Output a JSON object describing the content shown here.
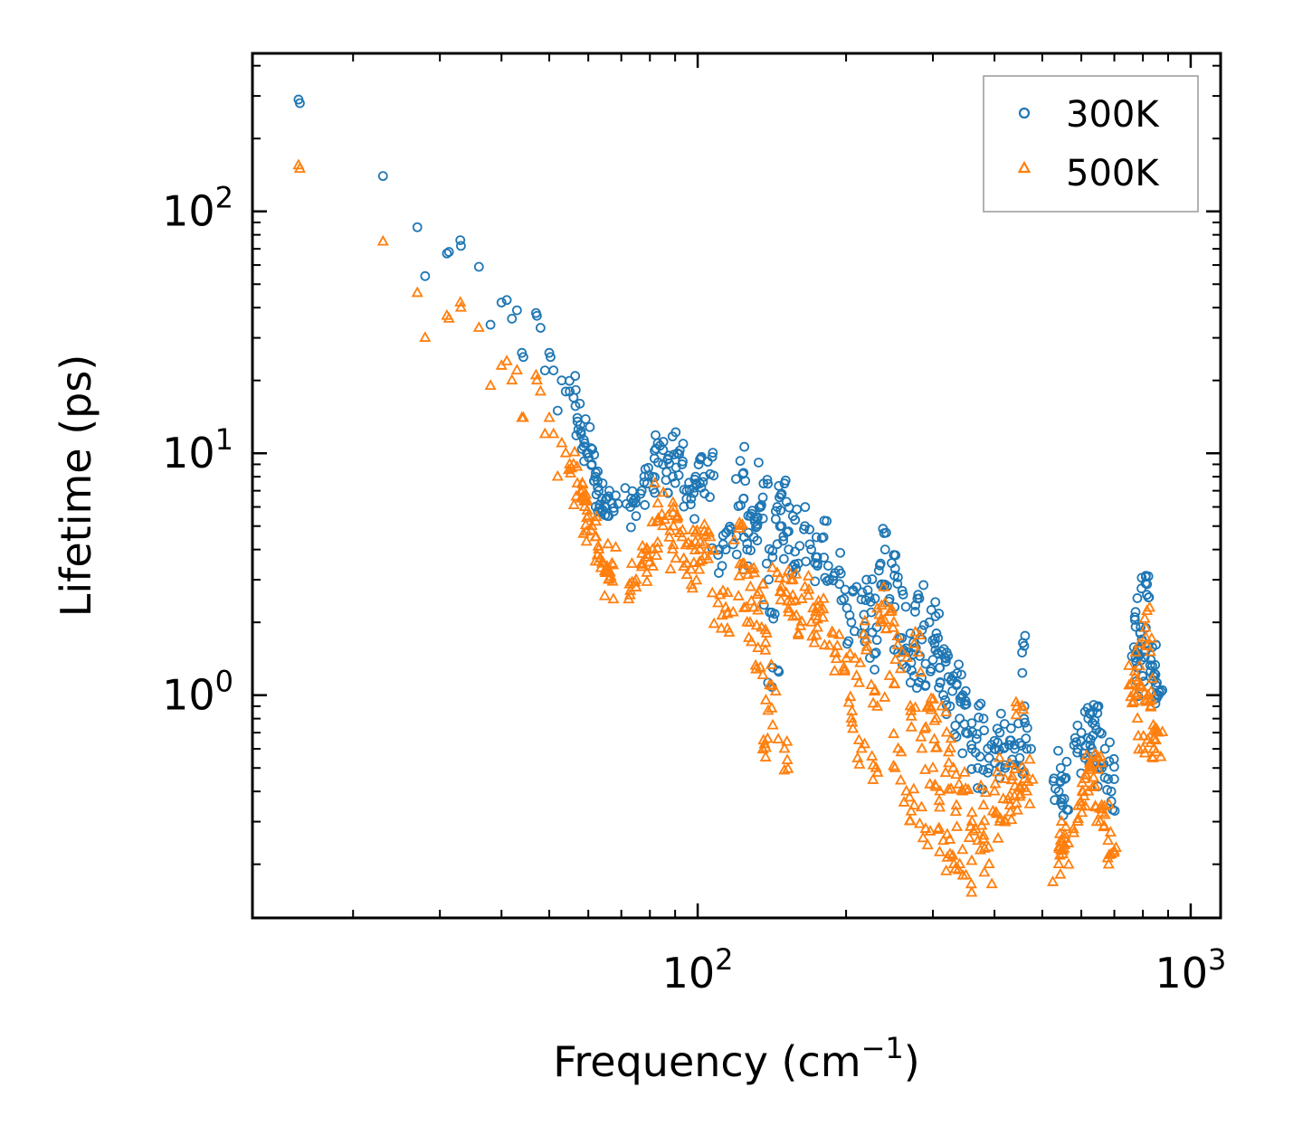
{
  "chart_data": {
    "type": "scatter",
    "xscale": "log",
    "yscale": "log",
    "xlim": [
      12.5,
      1150
    ],
    "ylim": [
      0.12,
      450
    ],
    "xlabel": "Frequency (cm",
    "xlabel_exp": "−1",
    "xlabel_close": ")",
    "ylabel": "Lifetime (ps)",
    "x_ticks": [
      {
        "base": "10",
        "exp": "2",
        "value": 100
      },
      {
        "base": "10",
        "exp": "3",
        "value": 1000
      }
    ],
    "y_ticks": [
      {
        "base": "10",
        "exp": "0",
        "value": 1
      },
      {
        "base": "10",
        "exp": "1",
        "value": 10
      },
      {
        "base": "10",
        "exp": "2",
        "value": 100
      }
    ],
    "legend_position": "top-right",
    "colors": {
      "series_300K": "#1f77b4",
      "series_500K": "#ff7f0e",
      "axis": "#000000",
      "legend_border": "#999999"
    },
    "series": [
      {
        "name": "300K",
        "marker": "circle",
        "color": "#1f77b4",
        "points": [
          [
            15.5,
            290
          ],
          [
            15.6,
            280
          ],
          [
            23,
            140
          ],
          [
            27,
            86
          ],
          [
            28,
            54
          ],
          [
            31,
            67
          ],
          [
            31.3,
            68
          ],
          [
            33,
            76
          ],
          [
            33.1,
            72
          ],
          [
            36,
            59
          ],
          [
            38,
            34
          ],
          [
            40,
            42
          ],
          [
            41,
            43
          ],
          [
            42,
            36
          ],
          [
            43,
            39
          ],
          [
            44,
            26
          ],
          [
            44.3,
            25
          ],
          [
            47,
            38
          ],
          [
            47.2,
            37
          ],
          [
            48,
            33
          ],
          [
            49,
            22
          ],
          [
            50,
            26
          ],
          [
            50.3,
            25
          ],
          [
            51,
            22
          ],
          [
            52,
            15
          ],
          [
            53,
            20
          ],
          [
            54,
            18
          ],
          [
            55,
            18
          ],
          [
            56,
            17
          ],
          [
            57,
            14
          ],
          [
            58,
            12
          ],
          [
            59,
            11
          ],
          [
            60,
            10
          ],
          [
            61,
            9
          ],
          [
            62,
            8
          ],
          [
            63,
            7
          ],
          [
            64,
            6.5
          ],
          [
            65,
            6
          ],
          [
            66,
            5.5
          ],
          [
            67,
            6.2
          ],
          [
            73,
            6
          ],
          [
            75,
            5.5
          ],
          [
            77,
            7
          ],
          [
            79,
            7.5
          ],
          [
            81,
            8
          ],
          [
            83,
            11
          ],
          [
            85,
            9
          ],
          [
            87,
            9.5
          ],
          [
            89,
            8
          ],
          [
            91,
            10
          ],
          [
            93,
            9
          ],
          [
            95,
            7
          ],
          [
            97,
            6.5
          ],
          [
            99,
            8
          ],
          [
            101,
            7.5
          ],
          [
            103,
            8
          ],
          [
            106,
            8.2
          ],
          [
            110,
            3.8
          ],
          [
            114,
            4
          ],
          [
            118,
            4.2
          ],
          [
            122,
            9.3
          ],
          [
            124,
            6.5
          ],
          [
            126,
            4
          ],
          [
            128,
            5.5
          ],
          [
            130,
            4.5
          ],
          [
            132,
            5
          ],
          [
            134,
            6
          ],
          [
            136,
            7.5
          ],
          [
            138,
            3.5
          ],
          [
            140,
            2.2
          ],
          [
            142,
            1.3
          ],
          [
            145,
            6
          ],
          [
            148,
            5
          ],
          [
            150,
            7.5
          ],
          [
            153,
            4
          ],
          [
            156,
            5.5
          ],
          [
            160,
            3.5
          ],
          [
            165,
            5
          ],
          [
            170,
            4
          ],
          [
            175,
            3.5
          ],
          [
            180,
            4.5
          ],
          [
            185,
            3
          ],
          [
            190,
            3.2
          ],
          [
            198,
            2.5
          ],
          [
            205,
            2
          ],
          [
            210,
            2.8
          ],
          [
            215,
            1.8
          ],
          [
            220,
            3
          ],
          [
            225,
            2.2
          ],
          [
            230,
            1.5
          ],
          [
            235,
            3.5
          ],
          [
            240,
            4
          ],
          [
            245,
            2.5
          ],
          [
            250,
            3.8
          ],
          [
            255,
            1.5
          ],
          [
            260,
            2.7
          ],
          [
            265,
            1.3
          ],
          [
            270,
            1.8
          ],
          [
            275,
            1.2
          ],
          [
            280,
            2.6
          ],
          [
            285,
            1.7
          ],
          [
            290,
            1.1
          ],
          [
            295,
            2
          ],
          [
            300,
            1.4
          ],
          [
            305,
            1.8
          ],
          [
            310,
            1.3
          ],
          [
            315,
            1
          ],
          [
            320,
            1.5
          ],
          [
            325,
            0.9
          ],
          [
            330,
            1.2
          ],
          [
            335,
            1.1
          ],
          [
            340,
            0.8
          ],
          [
            345,
            1
          ],
          [
            350,
            0.7
          ],
          [
            360,
            0.6
          ],
          [
            370,
            0.5
          ],
          [
            380,
            0.8
          ],
          [
            390,
            0.55
          ],
          [
            400,
            0.6
          ],
          [
            410,
            0.7
          ],
          [
            420,
            0.5
          ],
          [
            430,
            0.65
          ],
          [
            440,
            0.6
          ],
          [
            450,
            0.55
          ],
          [
            455,
            1.5
          ],
          [
            460,
            0.9
          ],
          [
            465,
            0.6
          ],
          [
            540,
            0.4
          ],
          [
            545,
            0.5
          ],
          [
            550,
            0.35
          ],
          [
            555,
            0.45
          ],
          [
            590,
            0.6
          ],
          [
            600,
            0.7
          ],
          [
            610,
            0.55
          ],
          [
            620,
            0.8
          ],
          [
            630,
            0.6
          ],
          [
            640,
            0.75
          ],
          [
            650,
            0.9
          ],
          [
            660,
            0.5
          ],
          [
            670,
            0.6
          ],
          [
            680,
            0.45
          ],
          [
            690,
            0.4
          ],
          [
            770,
            2.1
          ],
          [
            775,
            1.5
          ],
          [
            780,
            1.3
          ],
          [
            790,
            1.8
          ],
          [
            800,
            1.2
          ],
          [
            810,
            2.9
          ],
          [
            815,
            2.6
          ],
          [
            820,
            1.6
          ],
          [
            830,
            1.4
          ],
          [
            840,
            1.2
          ],
          [
            850,
            1.1
          ],
          [
            860,
            1.0
          ]
        ]
      },
      {
        "name": "500K",
        "marker": "triangle",
        "color": "#ff7f0e",
        "points": [
          [
            15.5,
            155
          ],
          [
            15.6,
            150
          ],
          [
            23,
            75
          ],
          [
            27,
            46
          ],
          [
            28,
            30
          ],
          [
            31,
            37
          ],
          [
            31.3,
            36
          ],
          [
            33,
            42
          ],
          [
            33.1,
            40
          ],
          [
            36,
            33
          ],
          [
            38,
            19
          ],
          [
            40,
            23
          ],
          [
            41,
            24
          ],
          [
            42,
            20
          ],
          [
            43,
            22
          ],
          [
            44,
            14
          ],
          [
            44.3,
            14
          ],
          [
            47,
            21
          ],
          [
            47.2,
            20
          ],
          [
            48,
            18
          ],
          [
            49,
            12
          ],
          [
            50,
            14
          ],
          [
            51,
            12
          ],
          [
            52,
            8
          ],
          [
            53,
            11
          ],
          [
            54,
            10
          ],
          [
            55,
            9
          ],
          [
            56,
            9
          ],
          [
            57,
            7.5
          ],
          [
            58,
            6.5
          ],
          [
            59,
            6
          ],
          [
            60,
            5.5
          ],
          [
            61,
            5
          ],
          [
            62,
            4.5
          ],
          [
            63,
            4
          ],
          [
            64,
            3.5
          ],
          [
            65,
            3.2
          ],
          [
            66,
            3
          ],
          [
            67,
            3.5
          ],
          [
            73,
            2.7
          ],
          [
            75,
            3
          ],
          [
            77,
            3.5
          ],
          [
            79,
            3.8
          ],
          [
            81,
            4
          ],
          [
            83,
            6.2
          ],
          [
            85,
            5
          ],
          [
            87,
            5.5
          ],
          [
            89,
            4
          ],
          [
            91,
            5.5
          ],
          [
            93,
            4.5
          ],
          [
            95,
            3.5
          ],
          [
            97,
            3.3
          ],
          [
            99,
            4.3
          ],
          [
            101,
            4
          ],
          [
            103,
            4.2
          ],
          [
            106,
            4.5
          ],
          [
            110,
            2.4
          ],
          [
            114,
            2.3
          ],
          [
            118,
            2.2
          ],
          [
            122,
            5
          ],
          [
            124,
            3.5
          ],
          [
            126,
            2
          ],
          [
            128,
            2.8
          ],
          [
            130,
            2.3
          ],
          [
            132,
            2.6
          ],
          [
            134,
            1.3
          ],
          [
            136,
            0.65
          ],
          [
            138,
            1.8
          ],
          [
            140,
            1.1
          ],
          [
            142,
            0.75
          ],
          [
            145,
            3.2
          ],
          [
            148,
            2.8
          ],
          [
            150,
            0.6
          ],
          [
            153,
            2.2
          ],
          [
            156,
            3
          ],
          [
            160,
            1.8
          ],
          [
            165,
            2.8
          ],
          [
            170,
            2
          ],
          [
            175,
            1.9
          ],
          [
            180,
            2.5
          ],
          [
            185,
            1.6
          ],
          [
            190,
            1.5
          ],
          [
            198,
            1.3
          ],
          [
            205,
            0.8
          ],
          [
            210,
            1.2
          ],
          [
            215,
            0.6
          ],
          [
            220,
            1.7
          ],
          [
            225,
            1.1
          ],
          [
            230,
            0.5
          ],
          [
            235,
            2
          ],
          [
            240,
            2.4
          ],
          [
            245,
            1.2
          ],
          [
            250,
            2
          ],
          [
            255,
            0.6
          ],
          [
            260,
            1.5
          ],
          [
            265,
            0.4
          ],
          [
            270,
            0.9
          ],
          [
            275,
            0.35
          ],
          [
            280,
            1.5
          ],
          [
            285,
            0.6
          ],
          [
            290,
            0.28
          ],
          [
            295,
            0.9
          ],
          [
            300,
            0.5
          ],
          [
            305,
            0.8
          ],
          [
            310,
            0.4
          ],
          [
            315,
            0.25
          ],
          [
            320,
            0.7
          ],
          [
            325,
            0.22
          ],
          [
            330,
            0.5
          ],
          [
            335,
            0.35
          ],
          [
            340,
            0.2
          ],
          [
            345,
            0.4
          ],
          [
            350,
            0.18
          ],
          [
            360,
            0.3
          ],
          [
            370,
            0.25
          ],
          [
            380,
            0.35
          ],
          [
            390,
            0.2
          ],
          [
            400,
            0.4
          ],
          [
            410,
            0.3
          ],
          [
            420,
            0.45
          ],
          [
            430,
            0.35
          ],
          [
            440,
            0.42
          ],
          [
            450,
            0.38
          ],
          [
            455,
            0.9
          ],
          [
            460,
            0.45
          ],
          [
            465,
            0.4
          ],
          [
            540,
            0.2
          ],
          [
            545,
            0.25
          ],
          [
            550,
            0.22
          ],
          [
            555,
            0.24
          ],
          [
            590,
            0.3
          ],
          [
            600,
            0.35
          ],
          [
            610,
            0.45
          ],
          [
            620,
            0.4
          ],
          [
            630,
            0.5
          ],
          [
            640,
            0.42
          ],
          [
            650,
            0.55
          ],
          [
            660,
            0.35
          ],
          [
            670,
            0.32
          ],
          [
            680,
            0.25
          ],
          [
            690,
            0.22
          ],
          [
            770,
            1.25
          ],
          [
            775,
            1.0
          ],
          [
            780,
            0.8
          ],
          [
            790,
            1.1
          ],
          [
            800,
            0.6
          ],
          [
            810,
            1.9
          ],
          [
            815,
            1.6
          ],
          [
            820,
            1.0
          ],
          [
            830,
            0.9
          ],
          [
            840,
            0.75
          ],
          [
            850,
            0.65
          ],
          [
            860,
            0.7
          ]
        ]
      }
    ]
  }
}
